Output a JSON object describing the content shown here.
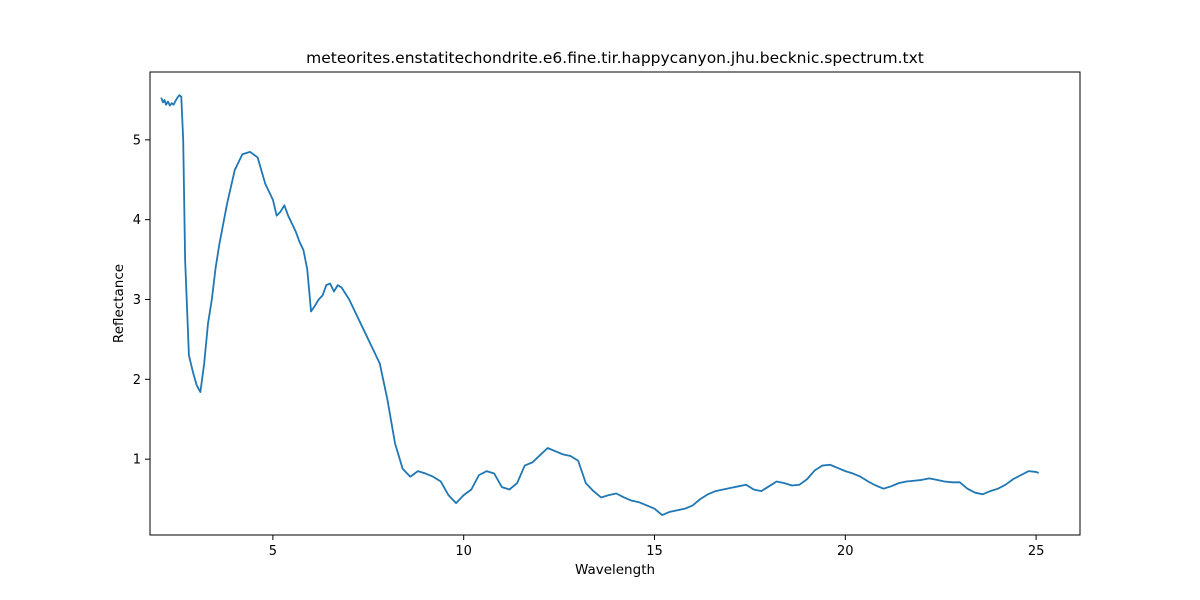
{
  "chart_data": {
    "type": "line",
    "title": "meteorites.enstatitechondrite.e6.fine.tir.happycanyon.jhu.becknic.spectrum.txt",
    "xlabel": "Wavelength",
    "ylabel": "Reflectance",
    "xlim": [
      1.78,
      26.15
    ],
    "ylim": [
      0.05,
      5.85
    ],
    "xticks": [
      5,
      10,
      15,
      20,
      25
    ],
    "yticks": [
      1,
      2,
      3,
      4,
      5
    ],
    "grid": false,
    "legend": "none",
    "series": [
      {
        "color": "#1f77b4",
        "x": [
          2.08,
          2.12,
          2.16,
          2.2,
          2.25,
          2.3,
          2.35,
          2.4,
          2.45,
          2.5,
          2.55,
          2.6,
          2.65,
          2.7,
          2.75,
          2.8,
          2.9,
          3.0,
          3.1,
          3.2,
          3.3,
          3.4,
          3.5,
          3.6,
          3.8,
          4.0,
          4.2,
          4.4,
          4.6,
          4.8,
          5.0,
          5.1,
          5.2,
          5.3,
          5.4,
          5.5,
          5.6,
          5.7,
          5.8,
          5.9,
          6.0,
          6.1,
          6.2,
          6.3,
          6.4,
          6.5,
          6.6,
          6.7,
          6.8,
          7.0,
          7.2,
          7.4,
          7.6,
          7.8,
          8.0,
          8.2,
          8.4,
          8.6,
          8.8,
          9.0,
          9.2,
          9.4,
          9.6,
          9.8,
          10.0,
          10.2,
          10.4,
          10.6,
          10.8,
          11.0,
          11.2,
          11.4,
          11.6,
          11.8,
          12.0,
          12.2,
          12.4,
          12.6,
          12.8,
          13.0,
          13.2,
          13.4,
          13.6,
          13.8,
          14.0,
          14.2,
          14.4,
          14.6,
          14.8,
          15.0,
          15.2,
          15.4,
          15.6,
          15.8,
          16.0,
          16.2,
          16.4,
          16.6,
          16.8,
          17.0,
          17.2,
          17.4,
          17.6,
          17.8,
          18.0,
          18.2,
          18.4,
          18.6,
          18.8,
          19.0,
          19.2,
          19.4,
          19.6,
          19.8,
          20.0,
          20.2,
          20.4,
          20.6,
          20.8,
          21.0,
          21.2,
          21.4,
          21.6,
          21.8,
          22.0,
          22.2,
          22.4,
          22.6,
          22.8,
          23.0,
          23.2,
          23.4,
          23.6,
          23.8,
          24.0,
          24.2,
          24.4,
          24.6,
          24.8,
          25.0,
          25.05
        ],
        "y": [
          5.52,
          5.47,
          5.5,
          5.44,
          5.48,
          5.43,
          5.46,
          5.44,
          5.49,
          5.53,
          5.56,
          5.54,
          5.0,
          3.5,
          2.9,
          2.3,
          2.1,
          1.93,
          1.84,
          2.2,
          2.7,
          3.0,
          3.4,
          3.7,
          4.2,
          4.62,
          4.82,
          4.85,
          4.78,
          4.45,
          4.25,
          4.05,
          4.1,
          4.18,
          4.05,
          3.95,
          3.85,
          3.72,
          3.62,
          3.38,
          2.85,
          2.92,
          3.0,
          3.05,
          3.18,
          3.2,
          3.1,
          3.18,
          3.15,
          3.0,
          2.8,
          2.6,
          2.4,
          2.2,
          1.75,
          1.2,
          0.88,
          0.78,
          0.85,
          0.82,
          0.78,
          0.72,
          0.55,
          0.45,
          0.55,
          0.62,
          0.8,
          0.85,
          0.82,
          0.65,
          0.62,
          0.7,
          0.92,
          0.96,
          1.05,
          1.14,
          1.1,
          1.06,
          1.04,
          0.98,
          0.7,
          0.6,
          0.52,
          0.55,
          0.57,
          0.52,
          0.48,
          0.46,
          0.42,
          0.38,
          0.3,
          0.34,
          0.36,
          0.38,
          0.42,
          0.5,
          0.56,
          0.6,
          0.62,
          0.64,
          0.66,
          0.68,
          0.62,
          0.6,
          0.66,
          0.72,
          0.7,
          0.67,
          0.68,
          0.75,
          0.86,
          0.92,
          0.93,
          0.89,
          0.85,
          0.82,
          0.78,
          0.72,
          0.67,
          0.63,
          0.66,
          0.7,
          0.72,
          0.73,
          0.74,
          0.76,
          0.74,
          0.72,
          0.71,
          0.71,
          0.63,
          0.58,
          0.56,
          0.6,
          0.63,
          0.68,
          0.75,
          0.8,
          0.85,
          0.84,
          0.83
        ]
      }
    ]
  }
}
